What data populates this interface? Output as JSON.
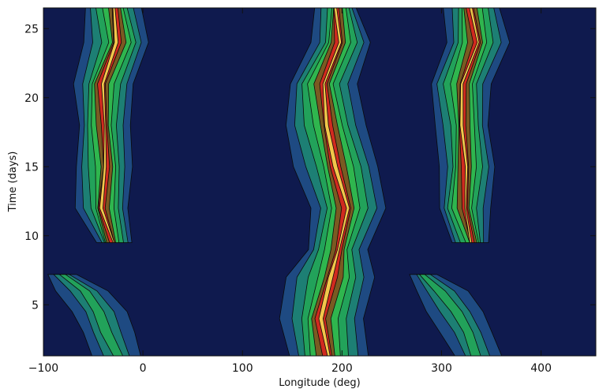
{
  "chart_data": {
    "type": "heatmap",
    "subtype": "filled-contour",
    "title": "",
    "xlabel": "Longitude (deg)",
    "ylabel": "Time (days)",
    "xlim": [
      -100,
      455
    ],
    "ylim": [
      1.3,
      26.5
    ],
    "x_ticks": [
      -100,
      0,
      100,
      200,
      300,
      400
    ],
    "y_ticks": [
      5,
      10,
      15,
      20,
      25
    ],
    "grid": false,
    "colors": {
      "background": "#0f1a4e",
      "levels": [
        "#0f1a4e",
        "#1e4a82",
        "#1d7f74",
        "#22a25a",
        "#2fb64e",
        "#7a5a22",
        "#d12a1f",
        "#f2c64a"
      ],
      "contour_line": "#0a0a0a"
    },
    "features": [
      {
        "name": "band-1-upper",
        "t_range": [
          9,
          26.5
        ],
        "lon_center": -35,
        "peak_level": 7
      },
      {
        "name": "band-1-lower",
        "t_range": [
          1.3,
          7.3
        ],
        "lon_center": -45,
        "peak_level": 3
      },
      {
        "name": "band-2-central",
        "t_range": [
          1.3,
          26.5
        ],
        "lon_center": 190,
        "peak_level": 7
      },
      {
        "name": "band-3-upper",
        "t_range": [
          9,
          26.5
        ],
        "lon_center": 325,
        "peak_level": 7
      },
      {
        "name": "band-3-lower",
        "t_range": [
          1.3,
          7.3
        ],
        "lon_center": 315,
        "peak_level": 3
      }
    ]
  }
}
